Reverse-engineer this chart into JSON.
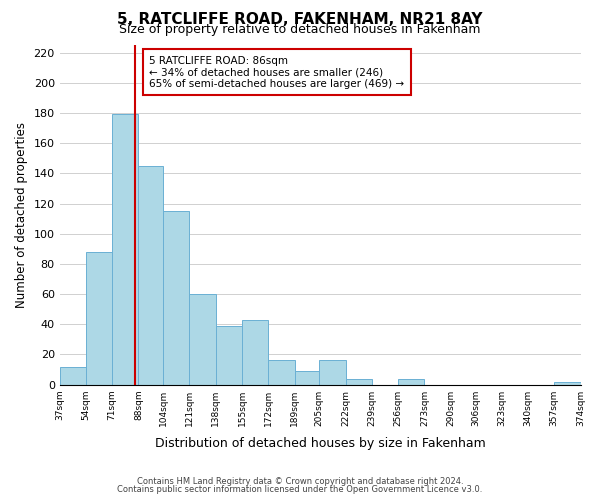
{
  "title": "5, RATCLIFFE ROAD, FAKENHAM, NR21 8AY",
  "subtitle": "Size of property relative to detached houses in Fakenham",
  "xlabel": "Distribution of detached houses by size in Fakenham",
  "ylabel": "Number of detached properties",
  "bin_labels": [
    "37sqm",
    "54sqm",
    "71sqm",
    "88sqm",
    "104sqm",
    "121sqm",
    "138sqm",
    "155sqm",
    "172sqm",
    "189sqm",
    "205sqm",
    "222sqm",
    "239sqm",
    "256sqm",
    "273sqm",
    "290sqm",
    "306sqm",
    "323sqm",
    "340sqm",
    "357sqm",
    "374sqm"
  ],
  "bar_values": [
    12,
    88,
    179,
    145,
    115,
    60,
    39,
    43,
    16,
    9,
    16,
    4,
    0,
    4,
    0,
    0,
    0,
    0,
    0,
    2
  ],
  "bin_edges": [
    37,
    54,
    71,
    88,
    104,
    121,
    138,
    155,
    172,
    189,
    205,
    222,
    239,
    256,
    273,
    290,
    306,
    323,
    340,
    357,
    374
  ],
  "bar_color": "#add8e6",
  "bar_edge_color": "#6ab0d4",
  "property_line_x": 86,
  "property_line_color": "#cc0000",
  "ylim": [
    0,
    225
  ],
  "yticks": [
    0,
    20,
    40,
    60,
    80,
    100,
    120,
    140,
    160,
    180,
    200,
    220
  ],
  "annotation_title": "5 RATCLIFFE ROAD: 86sqm",
  "annotation_line1": "← 34% of detached houses are smaller (246)",
  "annotation_line2": "65% of semi-detached houses are larger (469) →",
  "annotation_box_color": "#ffffff",
  "annotation_box_edge": "#cc0000",
  "footnote1": "Contains HM Land Registry data © Crown copyright and database right 2024.",
  "footnote2": "Contains public sector information licensed under the Open Government Licence v3.0.",
  "background_color": "#ffffff",
  "grid_color": "#d0d0d0"
}
